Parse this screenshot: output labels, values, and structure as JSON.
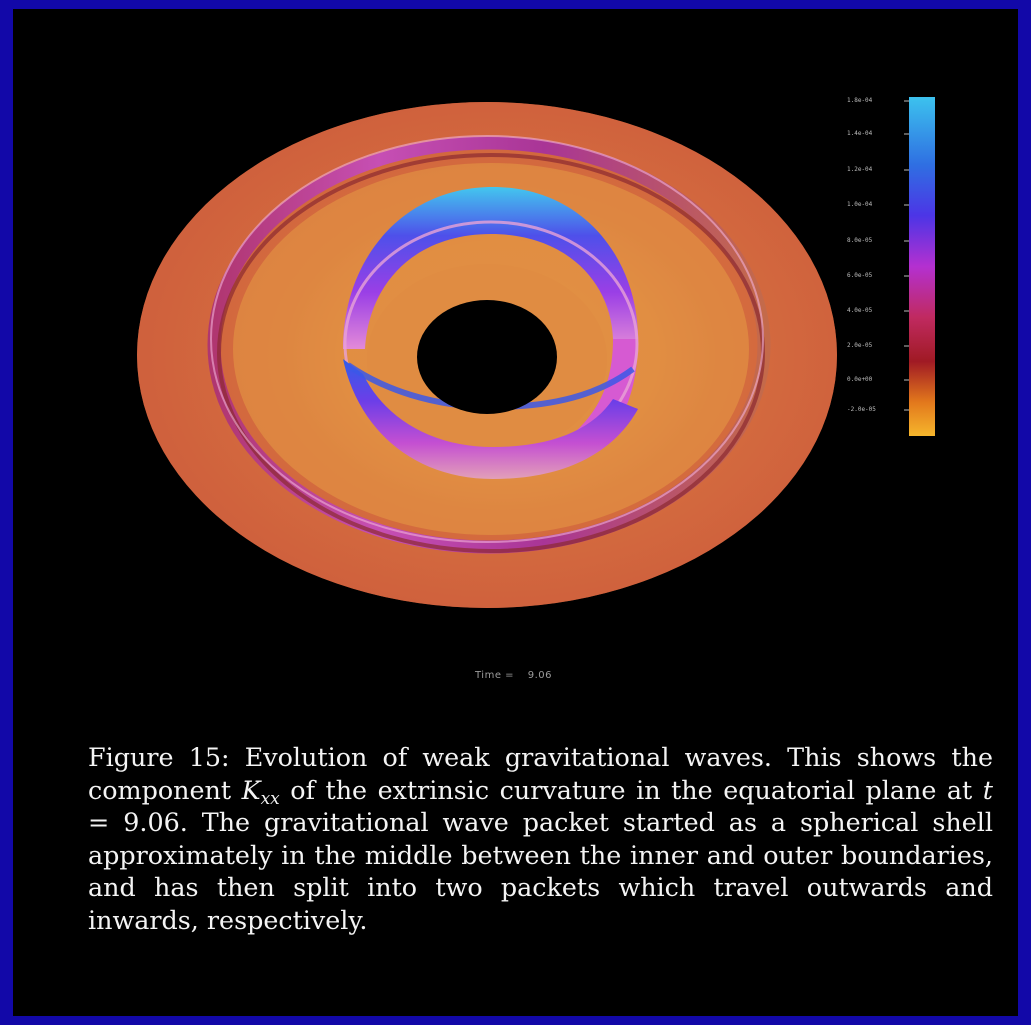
{
  "colorbar": {
    "labels": [
      "1.8e-04",
      "1.4e-04",
      "1.2e-04",
      "1.0e-04",
      "8.0e-05",
      "6.0e-05",
      "4.0e-05",
      "2.0e-05",
      "0.0e+00",
      "-2.0e-05"
    ],
    "colors": [
      "#3cc0ec",
      "#2f70e0",
      "#4a36e6",
      "#8c2fe0",
      "#c02ec4",
      "#cc2a5e",
      "#a81a28",
      "#c03018",
      "#e8861c",
      "#f4b42c"
    ]
  },
  "time_readout": {
    "label": "Time",
    "separator": "=",
    "value": "9.06"
  },
  "caption": {
    "figure_label": "Figure 15:",
    "part1": "Evolution of weak gravitational waves. This shows the component",
    "symbol": "K",
    "symbol_sub": "xx",
    "part2": "of the extrinsic curvature in the equatorial plane at",
    "time_var": "t",
    "part3": "= 9.06. The gravitational wave packet started as a spherical shell approximately in the middle between the inner and outer boundaries, and has then split into two packets which travel outwards and inwards, respectively."
  },
  "colors": {
    "outer_frame": "#1208a8",
    "background": "#000000",
    "disk_base": "#d2643e",
    "disk_inner_glow": "#e9a245"
  }
}
